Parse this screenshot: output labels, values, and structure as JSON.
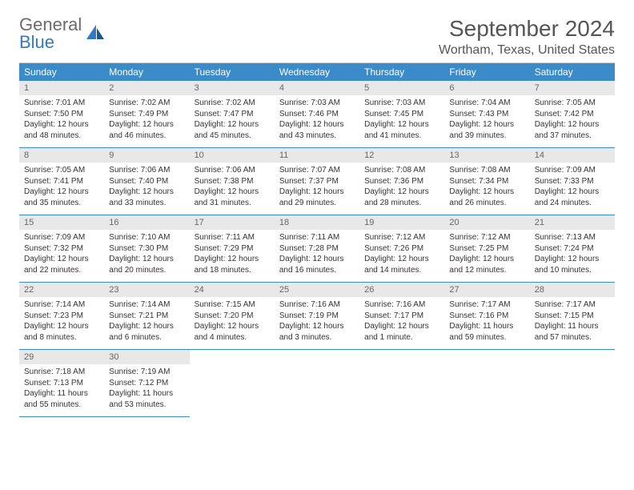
{
  "brand": {
    "general": "General",
    "blue": "Blue"
  },
  "title": {
    "month": "September 2024",
    "location": "Wortham, Texas, United States"
  },
  "colors": {
    "header_bg": "#3b8bc9",
    "header_text": "#ffffff",
    "num_bg": "#e8e8e8",
    "num_text": "#666666",
    "row_border": "#3b8bc9",
    "body_text": "#333333",
    "title_text": "#555555",
    "logo_gray": "#6b6b6b",
    "logo_blue": "#2f7ac0"
  },
  "dayheads": [
    "Sunday",
    "Monday",
    "Tuesday",
    "Wednesday",
    "Thursday",
    "Friday",
    "Saturday"
  ],
  "weeks": [
    [
      {
        "n": "1",
        "sr": "Sunrise: 7:01 AM",
        "ss": "Sunset: 7:50 PM",
        "dl": "Daylight: 12 hours and 48 minutes."
      },
      {
        "n": "2",
        "sr": "Sunrise: 7:02 AM",
        "ss": "Sunset: 7:49 PM",
        "dl": "Daylight: 12 hours and 46 minutes."
      },
      {
        "n": "3",
        "sr": "Sunrise: 7:02 AM",
        "ss": "Sunset: 7:47 PM",
        "dl": "Daylight: 12 hours and 45 minutes."
      },
      {
        "n": "4",
        "sr": "Sunrise: 7:03 AM",
        "ss": "Sunset: 7:46 PM",
        "dl": "Daylight: 12 hours and 43 minutes."
      },
      {
        "n": "5",
        "sr": "Sunrise: 7:03 AM",
        "ss": "Sunset: 7:45 PM",
        "dl": "Daylight: 12 hours and 41 minutes."
      },
      {
        "n": "6",
        "sr": "Sunrise: 7:04 AM",
        "ss": "Sunset: 7:43 PM",
        "dl": "Daylight: 12 hours and 39 minutes."
      },
      {
        "n": "7",
        "sr": "Sunrise: 7:05 AM",
        "ss": "Sunset: 7:42 PM",
        "dl": "Daylight: 12 hours and 37 minutes."
      }
    ],
    [
      {
        "n": "8",
        "sr": "Sunrise: 7:05 AM",
        "ss": "Sunset: 7:41 PM",
        "dl": "Daylight: 12 hours and 35 minutes."
      },
      {
        "n": "9",
        "sr": "Sunrise: 7:06 AM",
        "ss": "Sunset: 7:40 PM",
        "dl": "Daylight: 12 hours and 33 minutes."
      },
      {
        "n": "10",
        "sr": "Sunrise: 7:06 AM",
        "ss": "Sunset: 7:38 PM",
        "dl": "Daylight: 12 hours and 31 minutes."
      },
      {
        "n": "11",
        "sr": "Sunrise: 7:07 AM",
        "ss": "Sunset: 7:37 PM",
        "dl": "Daylight: 12 hours and 29 minutes."
      },
      {
        "n": "12",
        "sr": "Sunrise: 7:08 AM",
        "ss": "Sunset: 7:36 PM",
        "dl": "Daylight: 12 hours and 28 minutes."
      },
      {
        "n": "13",
        "sr": "Sunrise: 7:08 AM",
        "ss": "Sunset: 7:34 PM",
        "dl": "Daylight: 12 hours and 26 minutes."
      },
      {
        "n": "14",
        "sr": "Sunrise: 7:09 AM",
        "ss": "Sunset: 7:33 PM",
        "dl": "Daylight: 12 hours and 24 minutes."
      }
    ],
    [
      {
        "n": "15",
        "sr": "Sunrise: 7:09 AM",
        "ss": "Sunset: 7:32 PM",
        "dl": "Daylight: 12 hours and 22 minutes."
      },
      {
        "n": "16",
        "sr": "Sunrise: 7:10 AM",
        "ss": "Sunset: 7:30 PM",
        "dl": "Daylight: 12 hours and 20 minutes."
      },
      {
        "n": "17",
        "sr": "Sunrise: 7:11 AM",
        "ss": "Sunset: 7:29 PM",
        "dl": "Daylight: 12 hours and 18 minutes."
      },
      {
        "n": "18",
        "sr": "Sunrise: 7:11 AM",
        "ss": "Sunset: 7:28 PM",
        "dl": "Daylight: 12 hours and 16 minutes."
      },
      {
        "n": "19",
        "sr": "Sunrise: 7:12 AM",
        "ss": "Sunset: 7:26 PM",
        "dl": "Daylight: 12 hours and 14 minutes."
      },
      {
        "n": "20",
        "sr": "Sunrise: 7:12 AM",
        "ss": "Sunset: 7:25 PM",
        "dl": "Daylight: 12 hours and 12 minutes."
      },
      {
        "n": "21",
        "sr": "Sunrise: 7:13 AM",
        "ss": "Sunset: 7:24 PM",
        "dl": "Daylight: 12 hours and 10 minutes."
      }
    ],
    [
      {
        "n": "22",
        "sr": "Sunrise: 7:14 AM",
        "ss": "Sunset: 7:23 PM",
        "dl": "Daylight: 12 hours and 8 minutes."
      },
      {
        "n": "23",
        "sr": "Sunrise: 7:14 AM",
        "ss": "Sunset: 7:21 PM",
        "dl": "Daylight: 12 hours and 6 minutes."
      },
      {
        "n": "24",
        "sr": "Sunrise: 7:15 AM",
        "ss": "Sunset: 7:20 PM",
        "dl": "Daylight: 12 hours and 4 minutes."
      },
      {
        "n": "25",
        "sr": "Sunrise: 7:16 AM",
        "ss": "Sunset: 7:19 PM",
        "dl": "Daylight: 12 hours and 3 minutes."
      },
      {
        "n": "26",
        "sr": "Sunrise: 7:16 AM",
        "ss": "Sunset: 7:17 PM",
        "dl": "Daylight: 12 hours and 1 minute."
      },
      {
        "n": "27",
        "sr": "Sunrise: 7:17 AM",
        "ss": "Sunset: 7:16 PM",
        "dl": "Daylight: 11 hours and 59 minutes."
      },
      {
        "n": "28",
        "sr": "Sunrise: 7:17 AM",
        "ss": "Sunset: 7:15 PM",
        "dl": "Daylight: 11 hours and 57 minutes."
      }
    ],
    [
      {
        "n": "29",
        "sr": "Sunrise: 7:18 AM",
        "ss": "Sunset: 7:13 PM",
        "dl": "Daylight: 11 hours and 55 minutes."
      },
      {
        "n": "30",
        "sr": "Sunrise: 7:19 AM",
        "ss": "Sunset: 7:12 PM",
        "dl": "Daylight: 11 hours and 53 minutes."
      },
      null,
      null,
      null,
      null,
      null
    ]
  ]
}
